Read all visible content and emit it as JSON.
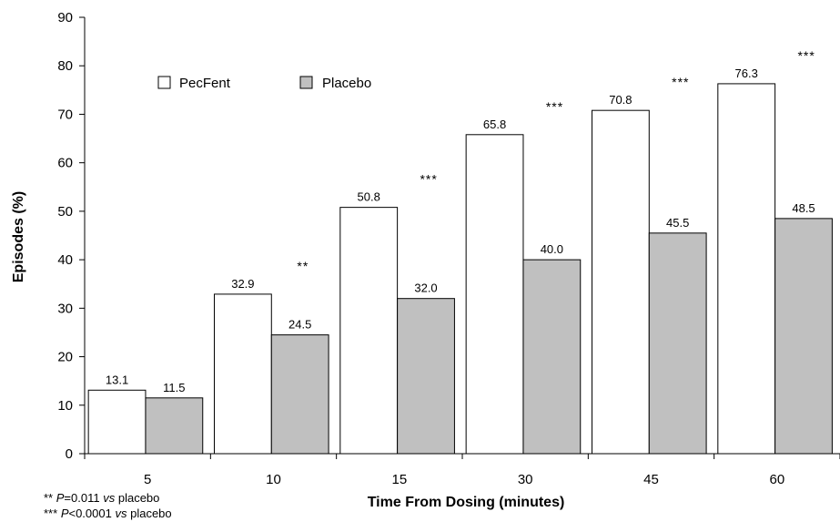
{
  "chart_data": {
    "type": "bar",
    "xlabel": "Time From Dosing (minutes)",
    "ylabel": "Episodes (%)",
    "ylim": [
      0,
      90
    ],
    "ytick_step": 10,
    "categories": [
      "5",
      "10",
      "15",
      "30",
      "45",
      "60"
    ],
    "series": [
      {
        "name": "PecFent",
        "values": [
          13.1,
          32.9,
          50.8,
          65.8,
          70.8,
          76.3
        ],
        "value_labels": [
          "13.1",
          "32.9",
          "50.8",
          "65.8",
          "70.8",
          "76.3"
        ],
        "color": "#ffffff"
      },
      {
        "name": "Placebo",
        "values": [
          11.5,
          24.5,
          32.0,
          40.0,
          45.5,
          48.5
        ],
        "value_labels": [
          "11.5",
          "24.5",
          "32.0",
          "40.0",
          "45.5",
          "48.5"
        ],
        "color": "#c0c0c0"
      }
    ],
    "significance": [
      "",
      "**",
      "***",
      "***",
      "***",
      "***"
    ],
    "legend_position": "top-left",
    "grid": false
  },
  "footnotes": [
    {
      "stars": "**",
      "p": "P",
      "rel": "=0.011",
      "vs": "vs",
      "rest": "placebo"
    },
    {
      "stars": "***",
      "p": "P",
      "rel": "<0.0001",
      "vs": "vs",
      "rest": "placebo"
    }
  ]
}
